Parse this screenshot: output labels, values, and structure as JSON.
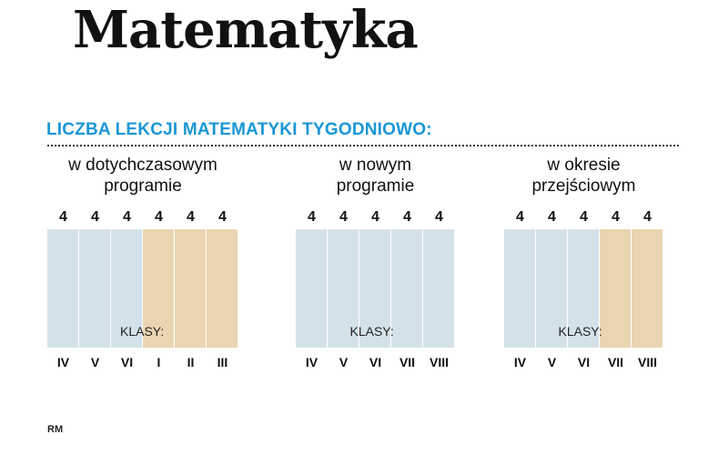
{
  "title": "Matematyka",
  "heading": "LICZBA LEKCJI MATEMATYKI TYGODNIOWO:",
  "credit": "RM",
  "colors": {
    "heading": "#1a97d5",
    "primary_school": "#d3e2e9",
    "gymnasium": "#ead5b2"
  },
  "chart_data": [
    {
      "type": "bar",
      "title": "w dotychczasowym programie",
      "title_lines": [
        "w dotychczasowym",
        "programie"
      ],
      "axis_label": "KLASY:",
      "categories": [
        "IV",
        "V",
        "VI",
        "I",
        "II",
        "III"
      ],
      "values": [
        4,
        4,
        4,
        4,
        4,
        4
      ],
      "bar_colors": [
        "blue",
        "blue",
        "blue",
        "tan",
        "tan",
        "tan"
      ]
    },
    {
      "type": "bar",
      "title": "w nowym programie",
      "title_lines": [
        "w nowym",
        "programie"
      ],
      "axis_label": "KLASY:",
      "categories": [
        "IV",
        "V",
        "VI",
        "VII",
        "VIII"
      ],
      "values": [
        4,
        4,
        4,
        4,
        4
      ],
      "bar_colors": [
        "blue",
        "blue",
        "blue",
        "blue",
        "blue"
      ]
    },
    {
      "type": "bar",
      "title": "w okresie przejściowym",
      "title_lines": [
        "w okresie",
        "przejściowym"
      ],
      "axis_label": "KLASY:",
      "categories": [
        "IV",
        "V",
        "VI",
        "VII",
        "VIII"
      ],
      "values": [
        4,
        4,
        4,
        4,
        4
      ],
      "bar_colors": [
        "blue",
        "blue",
        "blue",
        "tan",
        "tan"
      ]
    }
  ]
}
